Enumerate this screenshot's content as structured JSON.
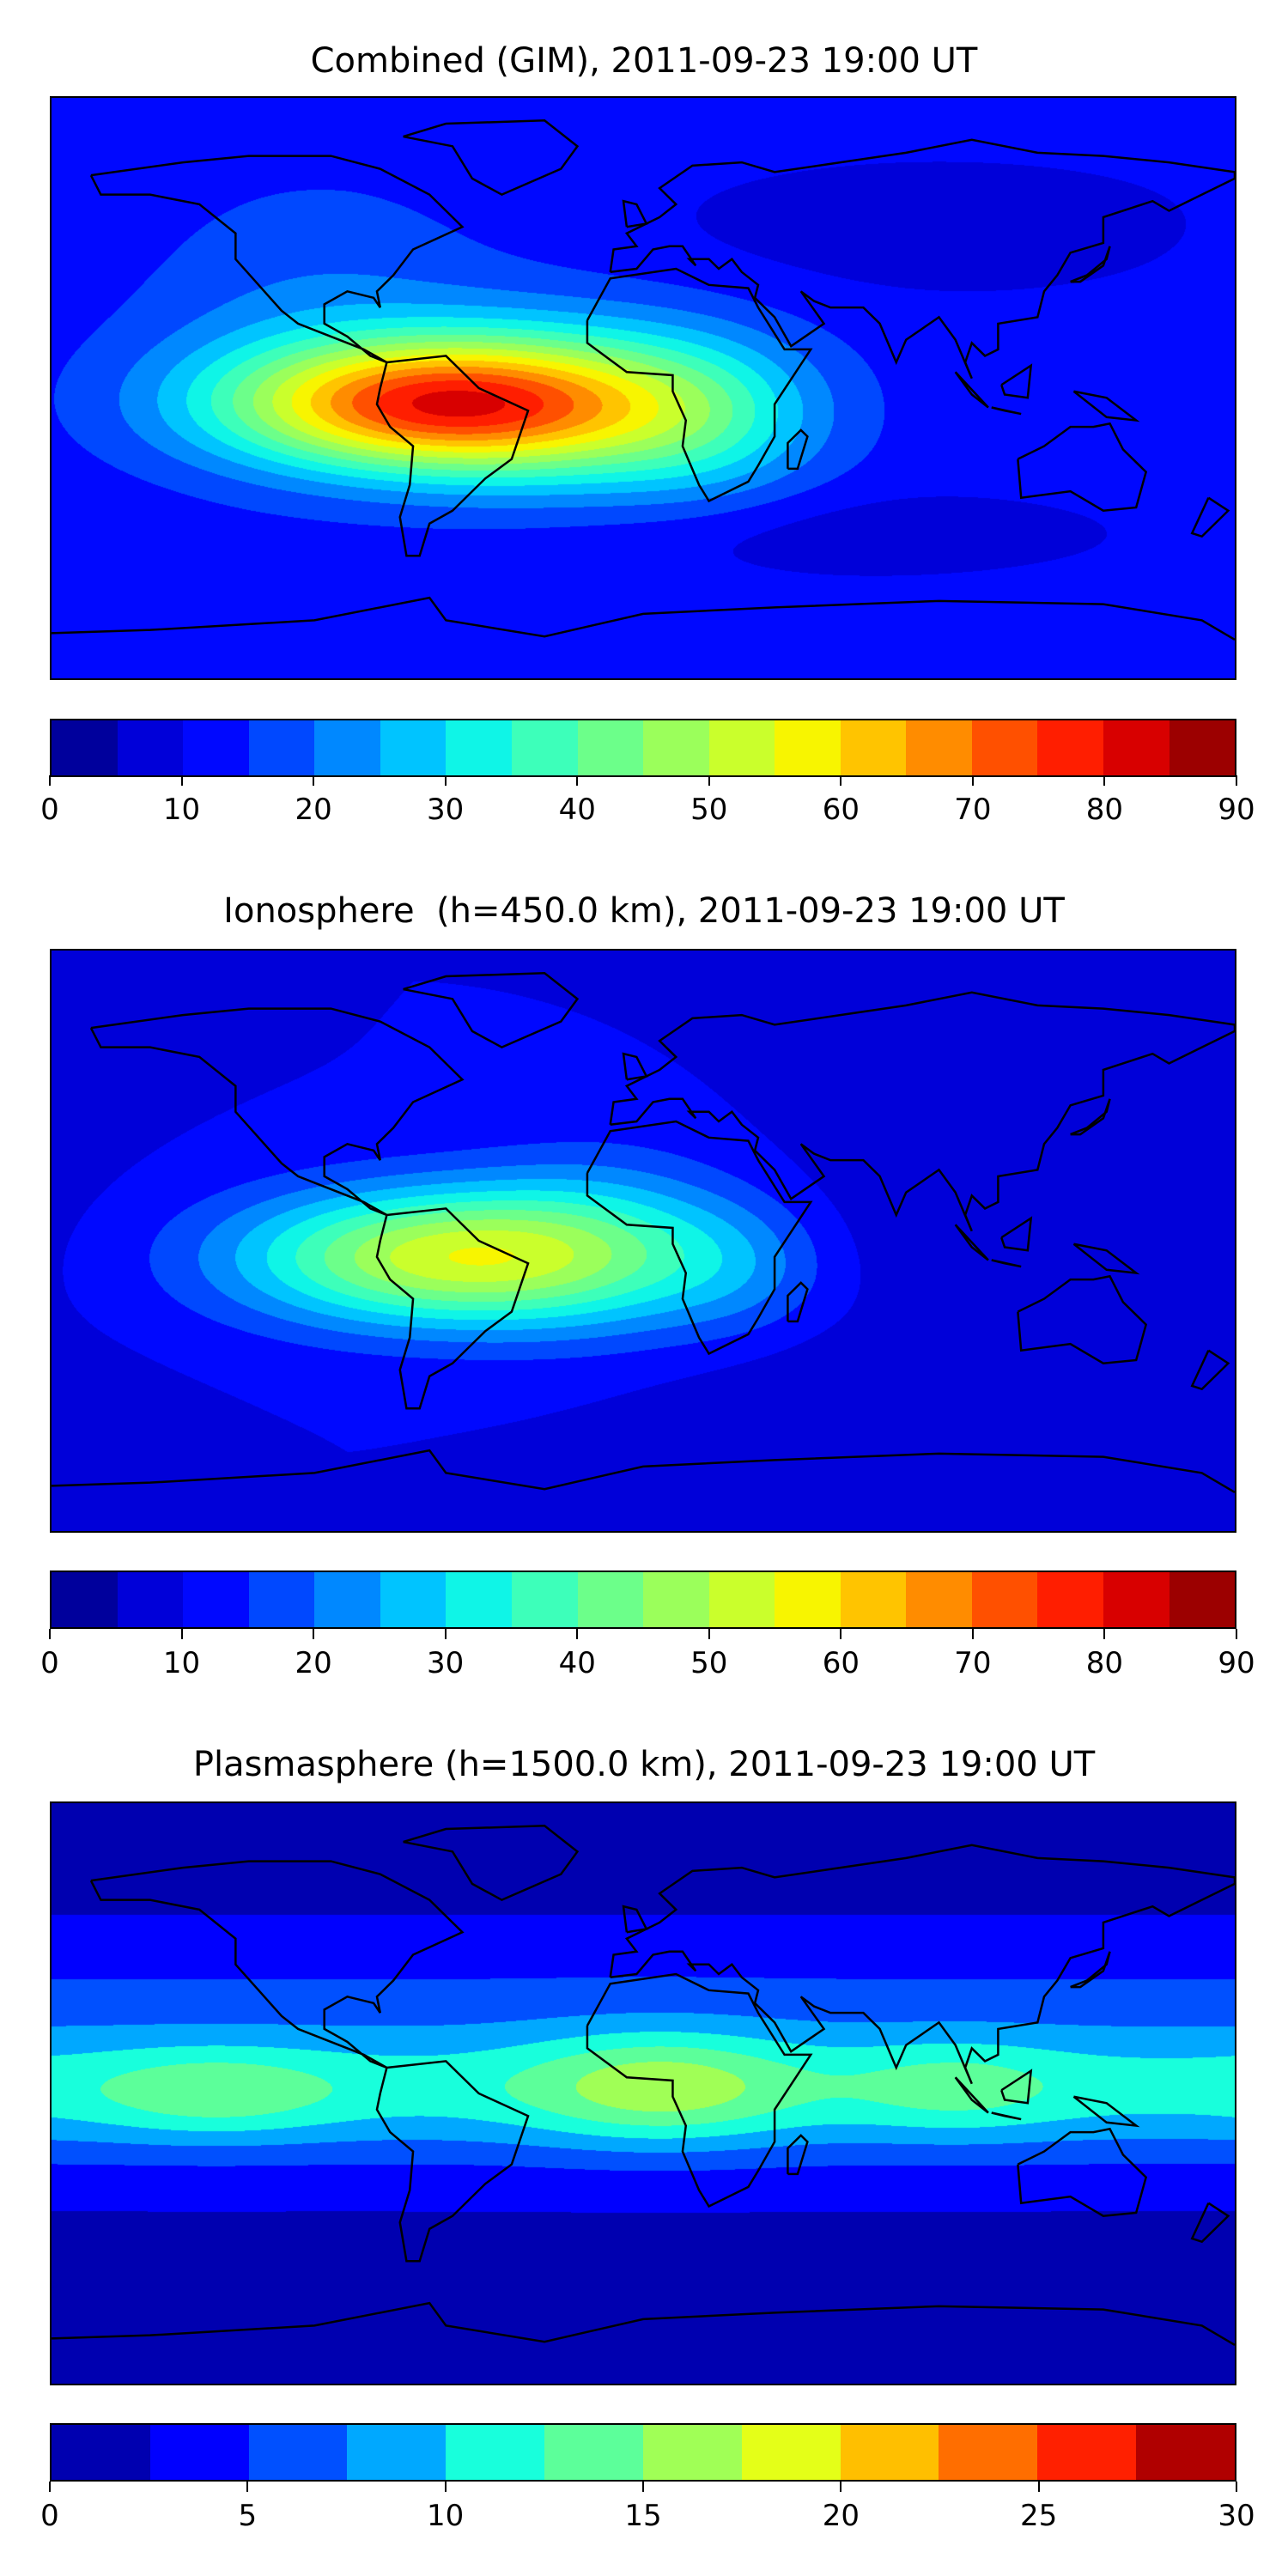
{
  "chart_data": [
    {
      "type": "heatmap",
      "title": "Combined (GIM), 2011-09-23 19:00 UT",
      "projection": "equirectangular",
      "lon_range": [
        -180,
        180
      ],
      "lat_range": [
        -90,
        90
      ],
      "colorbar": {
        "levels": [
          0,
          5,
          10,
          15,
          20,
          25,
          30,
          35,
          40,
          45,
          50,
          55,
          60,
          65,
          70,
          75,
          80,
          85,
          90
        ],
        "ticks": [
          "0",
          "10",
          "20",
          "30",
          "40",
          "50",
          "60",
          "70",
          "80",
          "90"
        ],
        "tick_values": [
          0,
          10,
          20,
          30,
          40,
          50,
          60,
          70,
          80,
          90
        ],
        "colors": [
          "#00009c",
          "#0000d9",
          "#0008ff",
          "#0048ff",
          "#0088ff",
          "#00c4ff",
          "#0ff5e7",
          "#3dffba",
          "#6cff8a",
          "#9bff5b",
          "#caff2c",
          "#f8f500",
          "#ffc400",
          "#ff8c00",
          "#ff5000",
          "#ff1e00",
          "#d80000",
          "#9c0000"
        ]
      },
      "field": {
        "background": 12,
        "components": [
          {
            "lon": -65,
            "lat": -5,
            "amp": 55,
            "slon": 45,
            "slat": 14
          },
          {
            "lon": -20,
            "lat": -5,
            "amp": 20,
            "slon": 40,
            "slat": 20
          },
          {
            "lon": 20,
            "lat": -10,
            "amp": 12,
            "slon": 25,
            "slat": 18
          },
          {
            "lon": -100,
            "lat": 20,
            "amp": 8,
            "slon": 40,
            "slat": 30
          },
          {
            "lon": 90,
            "lat": 50,
            "amp": -5,
            "slon": 60,
            "slat": 15
          },
          {
            "lon": 60,
            "lat": -45,
            "amp": -5,
            "slon": 60,
            "slat": 10
          }
        ]
      }
    },
    {
      "type": "heatmap",
      "title": "Ionosphere  (h=450.0 km), 2011-09-23 19:00 UT",
      "projection": "equirectangular",
      "lon_range": [
        -180,
        180
      ],
      "lat_range": [
        -90,
        90
      ],
      "colorbar": {
        "levels": [
          0,
          5,
          10,
          15,
          20,
          25,
          30,
          35,
          40,
          45,
          50,
          55,
          60,
          65,
          70,
          75,
          80,
          85,
          90
        ],
        "ticks": [
          "0",
          "10",
          "20",
          "30",
          "40",
          "50",
          "60",
          "70",
          "80",
          "90"
        ],
        "tick_values": [
          0,
          10,
          20,
          30,
          40,
          50,
          60,
          70,
          80,
          90
        ],
        "colors": [
          "#00009c",
          "#0000d9",
          "#0008ff",
          "#0048ff",
          "#0088ff",
          "#00c4ff",
          "#0ff5e7",
          "#3dffba",
          "#6cff8a",
          "#9bff5b",
          "#caff2c",
          "#f8f500",
          "#ffc400",
          "#ff8c00",
          "#ff5000",
          "#ff1e00",
          "#d80000",
          "#9c0000"
        ]
      },
      "field": {
        "background": 10,
        "components": [
          {
            "lon": -60,
            "lat": -5,
            "amp": 42,
            "slon": 45,
            "slat": 15
          },
          {
            "lon": -10,
            "lat": 0,
            "amp": 12,
            "slon": 30,
            "slat": 20
          },
          {
            "lon": 30,
            "lat": -8,
            "amp": 8,
            "slon": 20,
            "slat": 15
          },
          {
            "lon": 110,
            "lat": 10,
            "amp": -5,
            "slon": 50,
            "slat": 30
          },
          {
            "lon": 90,
            "lat": -45,
            "amp": -4,
            "slon": 60,
            "slat": 12
          }
        ]
      }
    },
    {
      "type": "heatmap",
      "title": "Plasmasphere (h=1500.0 km), 2011-09-23 19:00 UT",
      "projection": "equirectangular",
      "lon_range": [
        -180,
        180
      ],
      "lat_range": [
        -90,
        90
      ],
      "colorbar": {
        "levels": [
          0,
          2.5,
          5,
          7.5,
          10,
          12.5,
          15,
          17.5,
          20,
          22.5,
          25,
          27.5,
          30
        ],
        "ticks": [
          "0",
          "5",
          "10",
          "15",
          "20",
          "25",
          "30"
        ],
        "tick_values": [
          0,
          5,
          10,
          15,
          20,
          25,
          30
        ],
        "colors": [
          "#0000b0",
          "#0000ff",
          "#0050ff",
          "#00a8ff",
          "#18ffdc",
          "#5cff9a",
          "#a0ff56",
          "#e4ff18",
          "#ffbf00",
          "#ff6e00",
          "#ff2000",
          "#b00000"
        ]
      },
      "field": {
        "background": 2,
        "components": [
          {
            "lon": 0,
            "lat": 2,
            "amp": 9,
            "slon": 100000,
            "slat": 16
          },
          {
            "lon": -130,
            "lat": 0,
            "amp": 4,
            "slon": 25,
            "slat": 9
          },
          {
            "lon": 5,
            "lat": 2,
            "amp": 6,
            "slon": 28,
            "slat": 12
          },
          {
            "lon": 95,
            "lat": 2,
            "amp": 3,
            "slon": 22,
            "slat": 10
          },
          {
            "lon": 0,
            "lat": 35,
            "amp": 2,
            "slon": 100000,
            "slat": 12
          }
        ]
      }
    }
  ]
}
